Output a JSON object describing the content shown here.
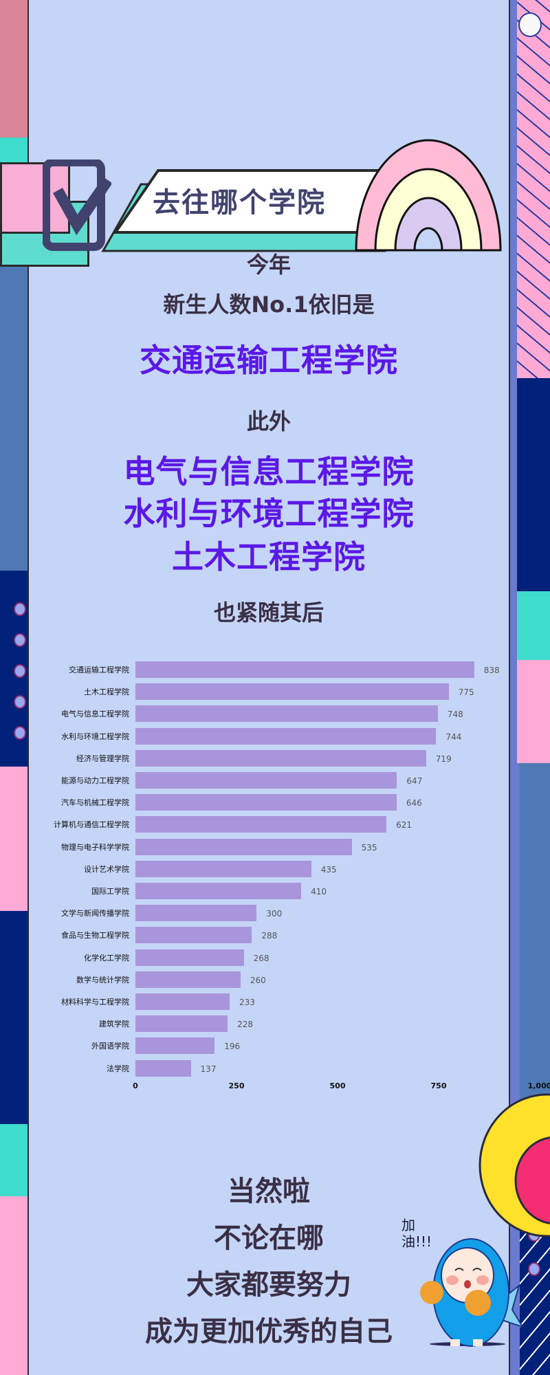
{
  "header": {
    "title": "去往哪个学院"
  },
  "intro": {
    "line1": "今年",
    "line2": "新生人数No.1依旧是",
    "top_college": "交通运输工程学院",
    "line3": "此外",
    "followers": [
      "电气与信息工程学院",
      "水利与环境工程学院",
      "土木工程学院"
    ],
    "line4": "也紧随其后"
  },
  "chart_data": {
    "type": "bar",
    "orientation": "horizontal",
    "categories": [
      "交通运输工程学院",
      "土木工程学院",
      "电气与信息工程学院",
      "水利与环境工程学院",
      "经济与管理学院",
      "能源与动力工程学院",
      "汽车与机械工程学院",
      "计算机与通信工程学院",
      "物理与电子科学学院",
      "设计艺术学院",
      "国际工学院",
      "文学与新闻传播学院",
      "食品与生物工程学院",
      "化学化工学院",
      "数学与统计学院",
      "材料科学与工程学院",
      "建筑学院",
      "外国语学院",
      "法学院"
    ],
    "values": [
      838,
      775,
      748,
      744,
      719,
      647,
      646,
      621,
      535,
      435,
      410,
      300,
      288,
      268,
      260,
      233,
      228,
      196,
      137
    ],
    "xticks": [
      "0",
      "250",
      "500",
      "750",
      "1,000"
    ],
    "xlim": [
      0,
      1000
    ],
    "grid": false,
    "bar_color": "#a995db"
  },
  "outro": {
    "lines": [
      "当然啦",
      "不论在哪",
      "大家都要努力",
      "成为更加优秀的自己"
    ],
    "mascot_text": "加油!!!"
  },
  "colors": {
    "background": "#c5d5f7",
    "accent_purple": "#5b18e6",
    "text_dark": "#3a2f45",
    "navy": "#00217a",
    "pink": "#ffaad5",
    "teal": "#3edccc",
    "steel_blue": "#4e79b5",
    "yellow": "#ffe02a"
  }
}
